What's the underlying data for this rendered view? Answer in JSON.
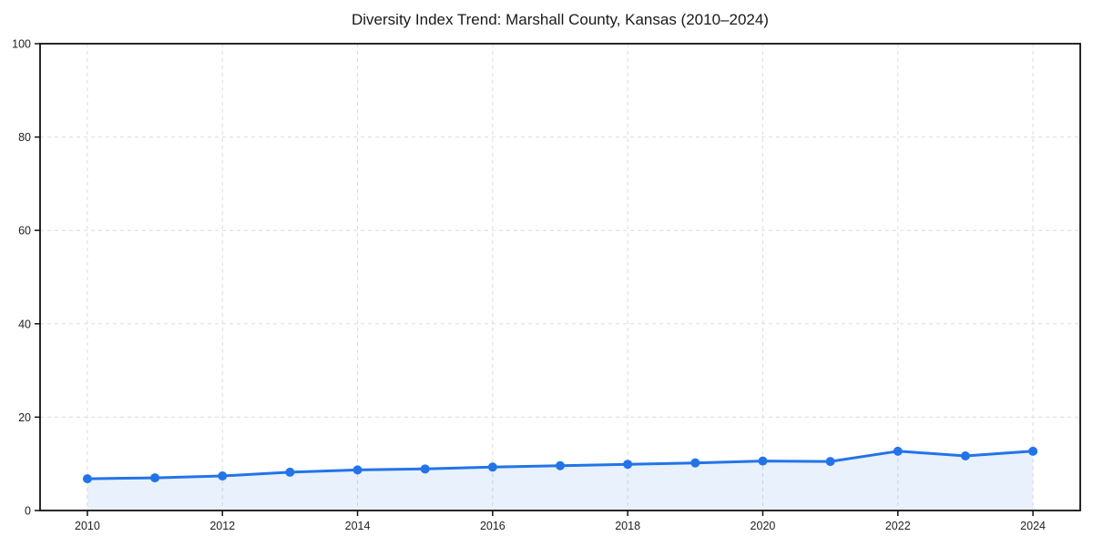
{
  "title": "Diversity Index Trend: Marshall County, Kansas (2010–2024)",
  "chart_data": {
    "type": "line",
    "title": "Diversity Index Trend: Marshall County, Kansas (2010–2024)",
    "xlabel": "",
    "ylabel": "",
    "x": [
      2010,
      2011,
      2012,
      2013,
      2014,
      2015,
      2016,
      2017,
      2018,
      2019,
      2020,
      2021,
      2022,
      2023,
      2024
    ],
    "series": [
      {
        "name": "Diversity Index",
        "values": [
          6.8,
          7.0,
          7.4,
          8.2,
          8.7,
          8.9,
          9.3,
          9.6,
          9.9,
          10.2,
          10.6,
          10.5,
          12.7,
          11.7,
          12.7
        ]
      }
    ],
    "xlim": [
      2009.3,
      2024.7
    ],
    "ylim": [
      0,
      100
    ],
    "xticks": [
      2010,
      2012,
      2014,
      2016,
      2018,
      2020,
      2022,
      2024
    ],
    "yticks": [
      0,
      20,
      40,
      60,
      80,
      100
    ],
    "grid": true,
    "grid_style": "dashed",
    "legend": false,
    "marker": "circle",
    "colors": {
      "line": "#2374e8",
      "marker": "#2374e8",
      "area_fill": "rgba(35,116,232,0.10)",
      "gridline": "#dcdcdc",
      "spine": "#111111",
      "tick_label": "#222222",
      "title": "#1a1a1a",
      "background": "#ffffff"
    }
  }
}
